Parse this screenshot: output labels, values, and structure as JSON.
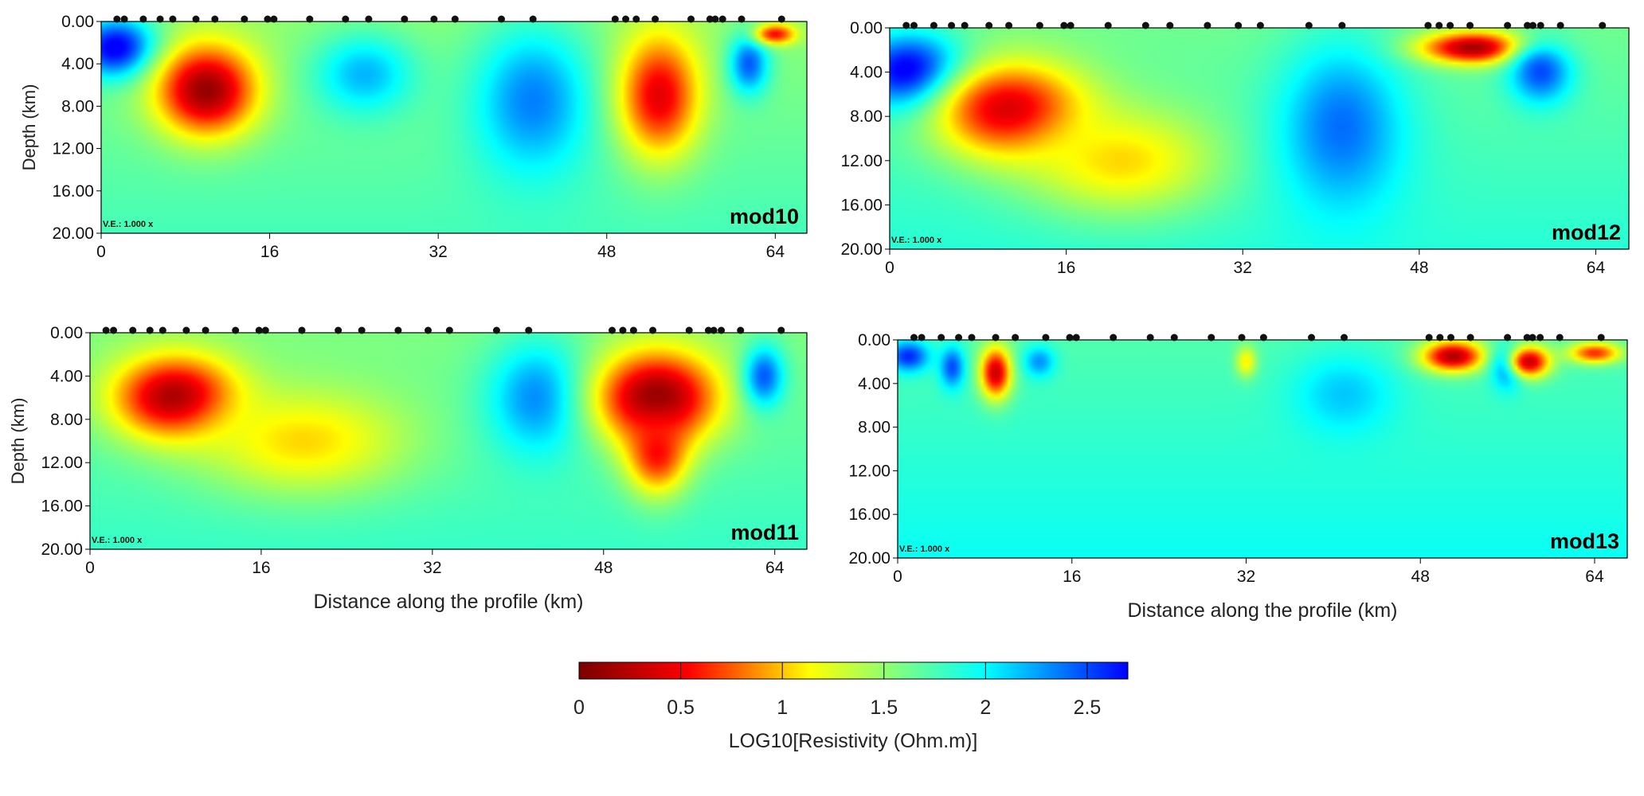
{
  "chart_data": [
    {
      "type": "heatmap",
      "panel_label": "mod10",
      "ylabel": "Depth (km)",
      "xlabel": "",
      "annotation": "V.E.: 1.000 x",
      "xlim": [
        0,
        67
      ],
      "ylim": [
        20,
        0
      ],
      "x_ticks": [
        "0",
        "16",
        "32",
        "48",
        "64"
      ],
      "y_ticks": [
        "0.00",
        "4.00",
        "8.00",
        "12.00",
        "16.00",
        "20.00"
      ],
      "stations_km": [
        1.5,
        2.2,
        4,
        5.6,
        6.8,
        9,
        10.8,
        13.6,
        15.8,
        16.4,
        19.8,
        23.2,
        25.4,
        28.8,
        31.6,
        33.6,
        38,
        41,
        48.8,
        49.8,
        50.8,
        52.6,
        56,
        57.8,
        58.3,
        59,
        60.8,
        64.6
      ],
      "background_value": 1.65,
      "anomalies": [
        {
          "x": 1.5,
          "z": 2.5,
          "rx": 4,
          "rz": 3,
          "v": 2.8
        },
        {
          "x": 10,
          "z": 6.5,
          "rx": 5,
          "rz": 4.5,
          "v": 0.1
        },
        {
          "x": 41,
          "z": 7.5,
          "rx": 6,
          "rz": 7.5,
          "v": 2.35
        },
        {
          "x": 53,
          "z": 7,
          "rx": 4,
          "rz": 6,
          "v": 0.4
        },
        {
          "x": 25,
          "z": 5,
          "rx": 5,
          "rz": 4,
          "v": 2.2
        },
        {
          "x": 61.5,
          "z": 4,
          "rx": 2,
          "rz": 3,
          "v": 2.45
        },
        {
          "x": 64,
          "z": 1.2,
          "rx": 2,
          "rz": 1,
          "v": 0.5
        }
      ]
    },
    {
      "type": "heatmap",
      "panel_label": "mod12",
      "ylabel": "",
      "xlabel": "",
      "annotation": "V.E.: 1.000 x",
      "xlim": [
        0,
        67
      ],
      "ylim": [
        20,
        0
      ],
      "x_ticks": [
        "0",
        "16",
        "32",
        "48",
        "64"
      ],
      "y_ticks": [
        "0.00",
        "4.00",
        "8.00",
        "12.00",
        "16.00",
        "20.00"
      ],
      "stations_km": [
        1.5,
        2.2,
        4,
        5.6,
        6.8,
        9,
        10.8,
        13.6,
        15.8,
        16.4,
        19.8,
        23.2,
        25.4,
        28.8,
        31.6,
        33.6,
        38,
        41,
        48.8,
        49.8,
        50.8,
        52.6,
        56,
        57.8,
        58.3,
        59,
        60.8,
        64.6
      ],
      "background_value": 1.75,
      "anomalies": [
        {
          "x": 2,
          "z": 4,
          "rx": 5,
          "rz": 3.5,
          "v": 2.9
        },
        {
          "x": 11,
          "z": 7.5,
          "rx": 7,
          "rz": 4.5,
          "v": 0.3
        },
        {
          "x": 21,
          "z": 12,
          "rx": 9,
          "rz": 5,
          "v": 1.05
        },
        {
          "x": 41,
          "z": 9,
          "rx": 6,
          "rz": 8,
          "v": 2.4
        },
        {
          "x": 53,
          "z": 1.8,
          "rx": 5,
          "rz": 1.5,
          "v": 0.15
        },
        {
          "x": 59,
          "z": 4,
          "rx": 3,
          "rz": 3,
          "v": 2.5
        }
      ]
    },
    {
      "type": "heatmap",
      "panel_label": "mod11",
      "ylabel": "Depth (km)",
      "xlabel": "Distance along the profile (km)",
      "annotation": "V.E.: 1.000 x",
      "xlim": [
        0,
        67
      ],
      "ylim": [
        20,
        0
      ],
      "x_ticks": [
        "0",
        "16",
        "32",
        "48",
        "64"
      ],
      "y_ticks": [
        "0.00",
        "4.00",
        "8.00",
        "12.00",
        "16.00",
        "20.00"
      ],
      "stations_km": [
        1.5,
        2.2,
        4,
        5.6,
        6.8,
        9,
        10.8,
        13.6,
        15.8,
        16.4,
        19.8,
        23.2,
        25.4,
        28.8,
        31.6,
        33.6,
        38,
        41,
        48.8,
        49.8,
        50.8,
        52.6,
        56,
        57.8,
        58.3,
        59,
        60.8,
        64.6
      ],
      "background_value": 1.7,
      "anomalies": [
        {
          "x": 8,
          "z": 6,
          "rx": 6,
          "rz": 4,
          "v": 0.1
        },
        {
          "x": 20,
          "z": 10,
          "rx": 10,
          "rz": 5,
          "v": 1.05
        },
        {
          "x": 42,
          "z": 6,
          "rx": 5,
          "rz": 5.5,
          "v": 2.35
        },
        {
          "x": 53,
          "z": 6,
          "rx": 6,
          "rz": 4.5,
          "v": 0.05
        },
        {
          "x": 53,
          "z": 11,
          "rx": 3,
          "rz": 4,
          "v": 0.5
        },
        {
          "x": 63,
          "z": 4,
          "rx": 2,
          "rz": 3,
          "v": 2.45
        }
      ]
    },
    {
      "type": "heatmap",
      "panel_label": "mod13",
      "ylabel": "",
      "xlabel": "Distance along the profile (km)",
      "annotation": "V.E.: 1.000 x",
      "xlim": [
        0,
        67
      ],
      "ylim": [
        20,
        0
      ],
      "x_ticks": [
        "0",
        "16",
        "32",
        "48",
        "64"
      ],
      "y_ticks": [
        "0.00",
        "4.00",
        "8.00",
        "12.00",
        "16.00",
        "20.00"
      ],
      "stations_km": [
        1.5,
        2.2,
        4,
        5.6,
        6.8,
        9,
        10.8,
        13.6,
        15.8,
        16.4,
        19.8,
        23.2,
        25.4,
        28.8,
        31.6,
        33.6,
        38,
        41,
        48.8,
        49.8,
        50.8,
        52.6,
        56,
        57.8,
        58.3,
        59,
        60.8,
        64.6
      ],
      "background_value": 1.85,
      "anomalies": [
        {
          "x": 1,
          "z": 1.5,
          "rx": 2,
          "rz": 1.5,
          "v": 2.6
        },
        {
          "x": 5,
          "z": 2.5,
          "rx": 1.2,
          "rz": 2,
          "v": 2.5
        },
        {
          "x": 9,
          "z": 3,
          "rx": 1.5,
          "rz": 2.5,
          "v": 0.3
        },
        {
          "x": 13,
          "z": 2,
          "rx": 1.5,
          "rz": 1.5,
          "v": 2.3
        },
        {
          "x": 32,
          "z": 2,
          "rx": 1,
          "rz": 1.5,
          "v": 1.1
        },
        {
          "x": 41,
          "z": 5,
          "rx": 5,
          "rz": 4,
          "v": 2.15
        },
        {
          "x": 51,
          "z": 1.5,
          "rx": 3,
          "rz": 1.5,
          "v": 0.2
        },
        {
          "x": 56,
          "z": 2.5,
          "rx": 1.5,
          "rz": 2,
          "v": 2.5
        },
        {
          "x": 58,
          "z": 2,
          "rx": 2,
          "rz": 1.5,
          "v": 0.3
        },
        {
          "x": 64,
          "z": 1.2,
          "rx": 2.5,
          "rz": 1,
          "v": 0.6
        }
      ]
    }
  ],
  "colorbar": {
    "label": "LOG10[Resistivity (Ohm.m)]",
    "range": [
      0,
      2.7
    ],
    "tick_labels": [
      "0",
      "0.5",
      "1",
      "1.5",
      "2",
      "2.5"
    ],
    "colors": [
      "#7a0000",
      "#ff0000",
      "#ffff00",
      "#00ffff",
      "#0000ff"
    ]
  }
}
